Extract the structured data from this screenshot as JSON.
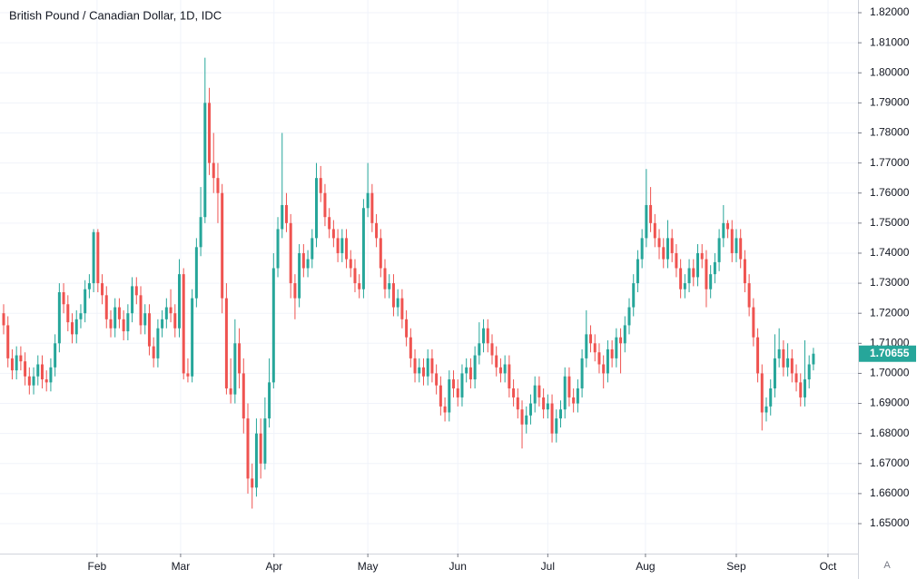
{
  "chart_data": {
    "type": "candlestick",
    "title": "British Pound / Canadian Dollar, 1D, IDC",
    "up_color": "#26a69a",
    "down_color": "#ef5350",
    "grid": true,
    "ylim": [
      1.64004,
      1.82423
    ],
    "yticks": [
      {
        "value": 1.65,
        "label": "1.65000"
      },
      {
        "value": 1.66,
        "label": "1.66000"
      },
      {
        "value": 1.67,
        "label": "1.67000"
      },
      {
        "value": 1.68,
        "label": "1.68000"
      },
      {
        "value": 1.69,
        "label": "1.69000"
      },
      {
        "value": 1.7,
        "label": "1.70000"
      },
      {
        "value": 1.71,
        "label": "1.71000"
      },
      {
        "value": 1.72,
        "label": "1.72000"
      },
      {
        "value": 1.73,
        "label": "1.73000"
      },
      {
        "value": 1.74,
        "label": "1.74000"
      },
      {
        "value": 1.75,
        "label": "1.75000"
      },
      {
        "value": 1.76,
        "label": "1.76000"
      },
      {
        "value": 1.77,
        "label": "1.77000"
      },
      {
        "value": 1.78,
        "label": "1.78000"
      },
      {
        "value": 1.79,
        "label": "1.79000"
      },
      {
        "value": 1.8,
        "label": "1.80000"
      },
      {
        "value": 1.81,
        "label": "1.81000"
      },
      {
        "value": 1.82,
        "label": "1.82000"
      }
    ],
    "xlim": [
      -0.85,
      199.4
    ],
    "xticks": [
      {
        "value": 21.8,
        "label": "Feb"
      },
      {
        "value": 41.3,
        "label": "Mar"
      },
      {
        "value": 63.1,
        "label": "Apr"
      },
      {
        "value": 85,
        "label": "May"
      },
      {
        "value": 106,
        "label": "Jun"
      },
      {
        "value": 127,
        "label": "Jul"
      },
      {
        "value": 149.8,
        "label": "Aug"
      },
      {
        "value": 171,
        "label": "Sep"
      },
      {
        "value": 192.4,
        "label": "Oct"
      }
    ],
    "candles": [
      [
        1.72,
        1.723,
        1.713,
        1.716
      ],
      [
        1.716,
        1.719,
        1.702,
        1.705
      ],
      [
        1.705,
        1.708,
        1.698,
        1.701
      ],
      [
        1.701,
        1.709,
        1.698,
        1.706
      ],
      [
        1.706,
        1.709,
        1.701,
        1.704
      ],
      [
        1.704,
        1.707,
        1.696,
        1.699
      ],
      [
        1.699,
        1.702,
        1.693,
        1.696
      ],
      [
        1.696,
        1.702,
        1.693,
        1.699
      ],
      [
        1.699,
        1.706,
        1.696,
        1.703
      ],
      [
        1.703,
        1.706,
        1.695,
        1.698
      ],
      [
        1.698,
        1.701,
        1.694,
        1.697
      ],
      [
        1.697,
        1.705,
        1.694,
        1.702
      ],
      [
        1.702,
        1.713,
        1.699,
        1.71
      ],
      [
        1.71,
        1.73,
        1.707,
        1.727
      ],
      [
        1.727,
        1.73,
        1.72,
        1.723
      ],
      [
        1.723,
        1.726,
        1.714,
        1.717
      ],
      [
        1.717,
        1.72,
        1.71,
        1.713
      ],
      [
        1.713,
        1.721,
        1.71,
        1.718
      ],
      [
        1.718,
        1.723,
        1.715,
        1.72
      ],
      [
        1.72,
        1.731,
        1.717,
        1.728
      ],
      [
        1.728,
        1.733,
        1.725,
        1.73
      ],
      [
        1.73,
        1.748,
        1.727,
        1.747
      ],
      [
        1.747,
        1.748,
        1.727,
        1.73
      ],
      [
        1.73,
        1.733,
        1.723,
        1.726
      ],
      [
        1.726,
        1.729,
        1.715,
        1.718
      ],
      [
        1.718,
        1.721,
        1.712,
        1.715
      ],
      [
        1.715,
        1.725,
        1.712,
        1.722
      ],
      [
        1.722,
        1.725,
        1.715,
        1.718
      ],
      [
        1.718,
        1.721,
        1.711,
        1.714
      ],
      [
        1.714,
        1.723,
        1.711,
        1.72
      ],
      [
        1.72,
        1.732,
        1.717,
        1.729
      ],
      [
        1.729,
        1.732,
        1.723,
        1.726
      ],
      [
        1.726,
        1.729,
        1.713,
        1.716
      ],
      [
        1.716,
        1.723,
        1.713,
        1.72
      ],
      [
        1.72,
        1.723,
        1.706,
        1.709
      ],
      [
        1.709,
        1.712,
        1.702,
        1.705
      ],
      [
        1.705,
        1.718,
        1.702,
        1.715
      ],
      [
        1.715,
        1.721,
        1.712,
        1.718
      ],
      [
        1.718,
        1.725,
        1.715,
        1.722
      ],
      [
        1.722,
        1.728,
        1.717,
        1.72
      ],
      [
        1.72,
        1.723,
        1.712,
        1.715
      ],
      [
        1.715,
        1.738,
        1.712,
        1.733
      ],
      [
        1.733,
        1.735,
        1.698,
        1.7
      ],
      [
        1.7,
        1.705,
        1.697,
        1.699
      ],
      [
        1.699,
        1.728,
        1.697,
        1.725
      ],
      [
        1.725,
        1.745,
        1.722,
        1.742
      ],
      [
        1.742,
        1.762,
        1.739,
        1.752
      ],
      [
        1.752,
        1.805,
        1.75,
        1.79
      ],
      [
        1.79,
        1.795,
        1.766,
        1.77
      ],
      [
        1.77,
        1.78,
        1.76,
        1.765
      ],
      [
        1.765,
        1.77,
        1.75,
        1.76
      ],
      [
        1.76,
        1.763,
        1.72,
        1.725
      ],
      [
        1.725,
        1.73,
        1.693,
        1.695
      ],
      [
        1.695,
        1.705,
        1.69,
        1.693
      ],
      [
        1.693,
        1.718,
        1.69,
        1.71
      ],
      [
        1.71,
        1.715,
        1.695,
        1.7
      ],
      [
        1.7,
        1.705,
        1.68,
        1.685
      ],
      [
        1.685,
        1.69,
        1.66,
        1.665
      ],
      [
        1.665,
        1.67,
        1.655,
        1.662
      ],
      [
        1.662,
        1.685,
        1.659,
        1.68
      ],
      [
        1.68,
        1.685,
        1.665,
        1.67
      ],
      [
        1.67,
        1.692,
        1.668,
        1.685
      ],
      [
        1.685,
        1.705,
        1.682,
        1.697
      ],
      [
        1.697,
        1.74,
        1.695,
        1.735
      ],
      [
        1.735,
        1.752,
        1.732,
        1.748
      ],
      [
        1.748,
        1.78,
        1.745,
        1.756
      ],
      [
        1.756,
        1.76,
        1.747,
        1.75
      ],
      [
        1.75,
        1.753,
        1.725,
        1.73
      ],
      [
        1.73,
        1.733,
        1.718,
        1.725
      ],
      [
        1.725,
        1.743,
        1.722,
        1.74
      ],
      [
        1.74,
        1.743,
        1.732,
        1.735
      ],
      [
        1.735,
        1.741,
        1.732,
        1.738
      ],
      [
        1.738,
        1.748,
        1.735,
        1.745
      ],
      [
        1.745,
        1.77,
        1.742,
        1.765
      ],
      [
        1.765,
        1.769,
        1.757,
        1.76
      ],
      [
        1.76,
        1.763,
        1.749,
        1.752
      ],
      [
        1.752,
        1.755,
        1.745,
        1.748
      ],
      [
        1.748,
        1.751,
        1.742,
        1.745
      ],
      [
        1.745,
        1.748,
        1.737,
        1.74
      ],
      [
        1.74,
        1.748,
        1.737,
        1.745
      ],
      [
        1.745,
        1.748,
        1.735,
        1.738
      ],
      [
        1.738,
        1.741,
        1.732,
        1.735
      ],
      [
        1.735,
        1.738,
        1.727,
        1.73
      ],
      [
        1.73,
        1.733,
        1.725,
        1.728
      ],
      [
        1.728,
        1.758,
        1.725,
        1.755
      ],
      [
        1.755,
        1.77,
        1.752,
        1.76
      ],
      [
        1.76,
        1.763,
        1.747,
        1.75
      ],
      [
        1.75,
        1.753,
        1.742,
        1.745
      ],
      [
        1.745,
        1.748,
        1.732,
        1.735
      ],
      [
        1.735,
        1.738,
        1.725,
        1.728
      ],
      [
        1.728,
        1.733,
        1.725,
        1.73
      ],
      [
        1.73,
        1.733,
        1.719,
        1.722
      ],
      [
        1.722,
        1.728,
        1.719,
        1.725
      ],
      [
        1.725,
        1.728,
        1.715,
        1.718
      ],
      [
        1.718,
        1.721,
        1.709,
        1.712
      ],
      [
        1.712,
        1.715,
        1.702,
        1.705
      ],
      [
        1.705,
        1.708,
        1.697,
        1.7
      ],
      [
        1.7,
        1.705,
        1.697,
        1.702
      ],
      [
        1.702,
        1.705,
        1.696,
        1.699
      ],
      [
        1.699,
        1.708,
        1.696,
        1.705
      ],
      [
        1.705,
        1.708,
        1.697,
        1.7
      ],
      [
        1.7,
        1.703,
        1.693,
        1.696
      ],
      [
        1.696,
        1.699,
        1.686,
        1.689
      ],
      [
        1.689,
        1.692,
        1.684,
        1.687
      ],
      [
        1.687,
        1.701,
        1.684,
        1.698
      ],
      [
        1.698,
        1.701,
        1.692,
        1.695
      ],
      [
        1.695,
        1.698,
        1.689,
        1.692
      ],
      [
        1.692,
        1.703,
        1.689,
        1.7
      ],
      [
        1.7,
        1.705,
        1.697,
        1.702
      ],
      [
        1.702,
        1.705,
        1.695,
        1.698
      ],
      [
        1.698,
        1.709,
        1.695,
        1.706
      ],
      [
        1.706,
        1.717,
        1.703,
        1.71
      ],
      [
        1.71,
        1.718,
        1.707,
        1.715
      ],
      [
        1.715,
        1.718,
        1.707,
        1.71
      ],
      [
        1.71,
        1.713,
        1.703,
        1.706
      ],
      [
        1.706,
        1.709,
        1.699,
        1.702
      ],
      [
        1.702,
        1.705,
        1.697,
        1.7
      ],
      [
        1.7,
        1.706,
        1.697,
        1.703
      ],
      [
        1.703,
        1.706,
        1.692,
        1.695
      ],
      [
        1.695,
        1.698,
        1.689,
        1.692
      ],
      [
        1.692,
        1.695,
        1.685,
        1.688
      ],
      [
        1.688,
        1.691,
        1.675,
        1.683
      ],
      [
        1.683,
        1.689,
        1.68,
        1.686
      ],
      [
        1.686,
        1.693,
        1.683,
        1.69
      ],
      [
        1.69,
        1.699,
        1.687,
        1.696
      ],
      [
        1.696,
        1.699,
        1.689,
        1.692
      ],
      [
        1.692,
        1.695,
        1.685,
        1.688
      ],
      [
        1.688,
        1.693,
        1.685,
        1.69
      ],
      [
        1.69,
        1.693,
        1.677,
        1.68
      ],
      [
        1.68,
        1.688,
        1.677,
        1.685
      ],
      [
        1.685,
        1.691,
        1.682,
        1.688
      ],
      [
        1.688,
        1.702,
        1.685,
        1.699
      ],
      [
        1.699,
        1.702,
        1.689,
        1.692
      ],
      [
        1.692,
        1.695,
        1.687,
        1.69
      ],
      [
        1.69,
        1.698,
        1.687,
        1.695
      ],
      [
        1.695,
        1.708,
        1.692,
        1.705
      ],
      [
        1.705,
        1.721,
        1.702,
        1.713
      ],
      [
        1.713,
        1.716,
        1.707,
        1.71
      ],
      [
        1.71,
        1.713,
        1.704,
        1.707
      ],
      [
        1.707,
        1.71,
        1.7,
        1.703
      ],
      [
        1.703,
        1.706,
        1.695,
        1.7
      ],
      [
        1.7,
        1.711,
        1.697,
        1.708
      ],
      [
        1.708,
        1.711,
        1.702,
        1.705
      ],
      [
        1.705,
        1.715,
        1.702,
        1.712
      ],
      [
        1.712,
        1.715,
        1.7,
        1.71
      ],
      [
        1.71,
        1.719,
        1.707,
        1.716
      ],
      [
        1.716,
        1.725,
        1.713,
        1.722
      ],
      [
        1.722,
        1.733,
        1.719,
        1.73
      ],
      [
        1.73,
        1.741,
        1.727,
        1.738
      ],
      [
        1.738,
        1.748,
        1.735,
        1.745
      ],
      [
        1.745,
        1.768,
        1.742,
        1.756
      ],
      [
        1.756,
        1.762,
        1.747,
        1.75
      ],
      [
        1.75,
        1.753,
        1.742,
        1.745
      ],
      [
        1.745,
        1.748,
        1.738,
        1.742
      ],
      [
        1.742,
        1.745,
        1.735,
        1.738
      ],
      [
        1.738,
        1.751,
        1.735,
        1.745
      ],
      [
        1.745,
        1.748,
        1.737,
        1.74
      ],
      [
        1.74,
        1.743,
        1.732,
        1.735
      ],
      [
        1.735,
        1.738,
        1.725,
        1.728
      ],
      [
        1.728,
        1.733,
        1.725,
        1.73
      ],
      [
        1.73,
        1.738,
        1.727,
        1.735
      ],
      [
        1.735,
        1.738,
        1.729,
        1.732
      ],
      [
        1.732,
        1.743,
        1.729,
        1.74
      ],
      [
        1.74,
        1.743,
        1.735,
        1.738
      ],
      [
        1.738,
        1.741,
        1.722,
        1.728
      ],
      [
        1.728,
        1.736,
        1.725,
        1.733
      ],
      [
        1.733,
        1.74,
        1.73,
        1.737
      ],
      [
        1.737,
        1.748,
        1.734,
        1.745
      ],
      [
        1.745,
        1.756,
        1.742,
        1.75
      ],
      [
        1.75,
        1.751,
        1.745,
        1.748
      ],
      [
        1.748,
        1.751,
        1.737,
        1.74
      ],
      [
        1.74,
        1.748,
        1.737,
        1.745
      ],
      [
        1.745,
        1.748,
        1.735,
        1.738
      ],
      [
        1.738,
        1.741,
        1.727,
        1.73
      ],
      [
        1.73,
        1.733,
        1.719,
        1.722
      ],
      [
        1.722,
        1.725,
        1.709,
        1.712
      ],
      [
        1.712,
        1.715,
        1.697,
        1.7
      ],
      [
        1.7,
        1.703,
        1.681,
        1.687
      ],
      [
        1.687,
        1.692,
        1.684,
        1.689
      ],
      [
        1.689,
        1.698,
        1.686,
        1.695
      ],
      [
        1.695,
        1.713,
        1.692,
        1.705
      ],
      [
        1.705,
        1.715,
        1.702,
        1.708
      ],
      [
        1.708,
        1.711,
        1.699,
        1.702
      ],
      [
        1.702,
        1.71,
        1.699,
        1.705
      ],
      [
        1.705,
        1.708,
        1.697,
        1.7
      ],
      [
        1.7,
        1.703,
        1.694,
        1.697
      ],
      [
        1.697,
        1.7,
        1.689,
        1.692
      ],
      [
        1.692,
        1.711,
        1.689,
        1.698
      ],
      [
        1.698,
        1.706,
        1.695,
        1.703
      ],
      [
        1.703,
        1.7085,
        1.701,
        1.70655
      ]
    ]
  },
  "toolbar": {
    "auto_scale": "A"
  }
}
